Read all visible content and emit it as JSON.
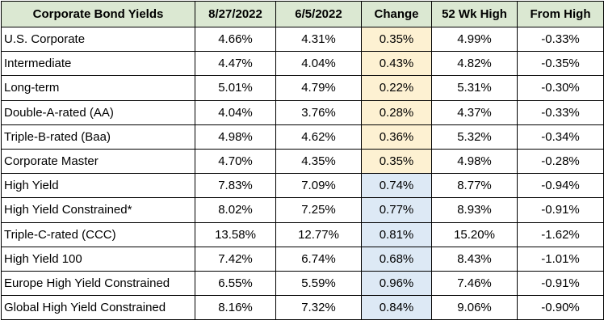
{
  "columns": [
    "Corporate Bond Yields",
    "8/27/2022",
    "6/5/2022",
    "Change",
    "52 Wk High",
    "From High"
  ],
  "rows": [
    {
      "name": "U.S. Corporate",
      "d1": "4.66%",
      "d2": "4.31%",
      "change": "0.35%",
      "high52": "4.99%",
      "from_high": "-0.33%",
      "group": "ig"
    },
    {
      "name": "Intermediate",
      "d1": "4.47%",
      "d2": "4.04%",
      "change": "0.43%",
      "high52": "4.82%",
      "from_high": "-0.35%",
      "group": "ig"
    },
    {
      "name": "Long-term",
      "d1": "5.01%",
      "d2": "4.79%",
      "change": "0.22%",
      "high52": "5.31%",
      "from_high": "-0.30%",
      "group": "ig"
    },
    {
      "name": "Double-A-rated (AA)",
      "d1": "4.04%",
      "d2": "3.76%",
      "change": "0.28%",
      "high52": "4.37%",
      "from_high": "-0.33%",
      "group": "ig"
    },
    {
      "name": "Triple-B-rated (Baa)",
      "d1": "4.98%",
      "d2": "4.62%",
      "change": "0.36%",
      "high52": "5.32%",
      "from_high": "-0.34%",
      "group": "ig"
    },
    {
      "name": "Corporate Master",
      "d1": "4.70%",
      "d2": "4.35%",
      "change": "0.35%",
      "high52": "4.98%",
      "from_high": "-0.28%",
      "group": "ig"
    },
    {
      "name": "High Yield",
      "d1": "7.83%",
      "d2": "7.09%",
      "change": "0.74%",
      "high52": "8.77%",
      "from_high": "-0.94%",
      "group": "hy"
    },
    {
      "name": "High Yield Constrained*",
      "d1": "8.02%",
      "d2": "7.25%",
      "change": "0.77%",
      "high52": "8.93%",
      "from_high": "-0.91%",
      "group": "hy"
    },
    {
      "name": "Triple-C-rated (CCC)",
      "d1": "13.58%",
      "d2": "12.77%",
      "change": "0.81%",
      "high52": "15.20%",
      "from_high": "-1.62%",
      "group": "hy"
    },
    {
      "name": "High Yield 100",
      "d1": "7.42%",
      "d2": "6.74%",
      "change": "0.68%",
      "high52": "8.43%",
      "from_high": "-1.01%",
      "group": "hy"
    },
    {
      "name": "Europe High Yield Constrained",
      "d1": "6.55%",
      "d2": "5.59%",
      "change": "0.96%",
      "high52": "7.46%",
      "from_high": "-0.91%",
      "group": "hy"
    },
    {
      "name": "Global High Yield Constrained",
      "d1": "8.16%",
      "d2": "7.32%",
      "change": "0.84%",
      "high52": "9.06%",
      "from_high": "-0.90%",
      "group": "hy"
    }
  ],
  "colors": {
    "header_bg": "#dbe8d2",
    "change_investment_grade_bg": "#fdf1d2",
    "change_high_yield_bg": "#dde9f5",
    "border": "#000000"
  }
}
